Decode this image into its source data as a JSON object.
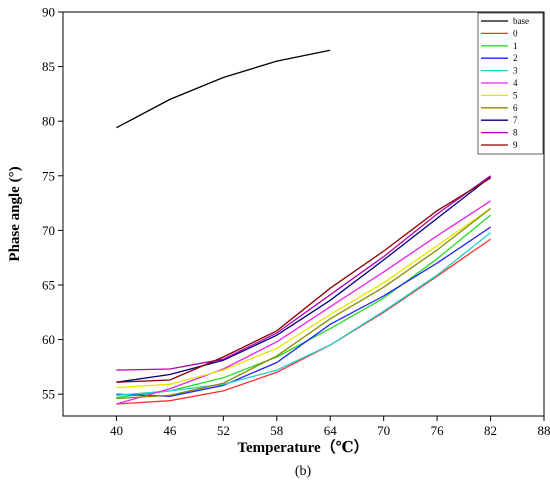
{
  "caption": "(b)",
  "chart_data": {
    "type": "line",
    "xlabel": "Temperature（℃）",
    "ylabel": "Phase angle (°)",
    "xlim": [
      34,
      88
    ],
    "ylim": [
      53,
      90
    ],
    "xticks": [
      40,
      46,
      52,
      58,
      64,
      70,
      76,
      82,
      88
    ],
    "yticks": [
      55,
      60,
      65,
      70,
      75,
      80,
      85,
      90
    ],
    "legend_position": "top-right",
    "grid": false,
    "series": [
      {
        "name": "base",
        "color": "#000000",
        "x": [
          40,
          46,
          52,
          58,
          64
        ],
        "values": [
          79.4,
          82.0,
          84.0,
          85.5,
          86.5
        ]
      },
      {
        "name": "0",
        "color": "#ff3030",
        "x": [
          40,
          46,
          52,
          58,
          64,
          70,
          76,
          82
        ],
        "values": [
          54.1,
          54.4,
          55.3,
          57.0,
          59.5,
          62.5,
          65.8,
          69.2
        ]
      },
      {
        "name": "1",
        "color": "#22dd22",
        "x": [
          40,
          46,
          52,
          58,
          64,
          70,
          76,
          82
        ],
        "values": [
          54.7,
          55.3,
          56.5,
          58.4,
          61.0,
          63.8,
          67.4,
          71.4
        ]
      },
      {
        "name": "2",
        "color": "#2222ff",
        "x": [
          40,
          46,
          52,
          58,
          64,
          70,
          76,
          82
        ],
        "values": [
          55.0,
          54.8,
          55.8,
          57.9,
          61.4,
          64.0,
          67.0,
          70.3
        ]
      },
      {
        "name": "3",
        "color": "#22d0d0",
        "x": [
          40,
          46,
          52,
          58,
          64,
          70,
          76,
          82
        ],
        "values": [
          54.9,
          55.3,
          55.9,
          57.2,
          59.5,
          62.6,
          65.9,
          69.8
        ]
      },
      {
        "name": "4",
        "color": "#ee22ee",
        "x": [
          40,
          46,
          52,
          58,
          64,
          70,
          76,
          82
        ],
        "values": [
          54.1,
          55.5,
          57.3,
          59.8,
          63.0,
          66.2,
          69.5,
          72.7
        ]
      },
      {
        "name": "5",
        "color": "#e6e600",
        "x": [
          40,
          46,
          52,
          58,
          64,
          70,
          76,
          82
        ],
        "values": [
          55.6,
          55.9,
          57.2,
          59.2,
          62.3,
          65.2,
          68.6,
          72.0
        ]
      },
      {
        "name": "6",
        "color": "#8b8b00",
        "x": [
          40,
          46,
          52,
          58,
          64,
          70,
          76,
          82
        ],
        "values": [
          54.6,
          54.9,
          56.0,
          58.5,
          61.9,
          64.8,
          68.2,
          72.0
        ]
      },
      {
        "name": "7",
        "color": "#000080",
        "x": [
          40,
          46,
          52,
          58,
          64,
          70,
          76,
          82
        ],
        "values": [
          56.1,
          56.8,
          58.1,
          60.4,
          63.6,
          67.3,
          71.1,
          74.9
        ]
      },
      {
        "name": "8",
        "color": "#b000b0",
        "x": [
          40,
          46,
          52,
          58,
          64,
          70,
          76,
          82
        ],
        "values": [
          57.2,
          57.3,
          58.2,
          60.6,
          64.1,
          67.6,
          71.5,
          75.0
        ]
      },
      {
        "name": "9",
        "color": "#8b0000",
        "x": [
          40,
          46,
          52,
          58,
          64,
          70,
          76,
          82
        ],
        "values": [
          56.1,
          56.3,
          58.4,
          60.8,
          64.7,
          68.1,
          71.8,
          74.8
        ]
      }
    ]
  }
}
